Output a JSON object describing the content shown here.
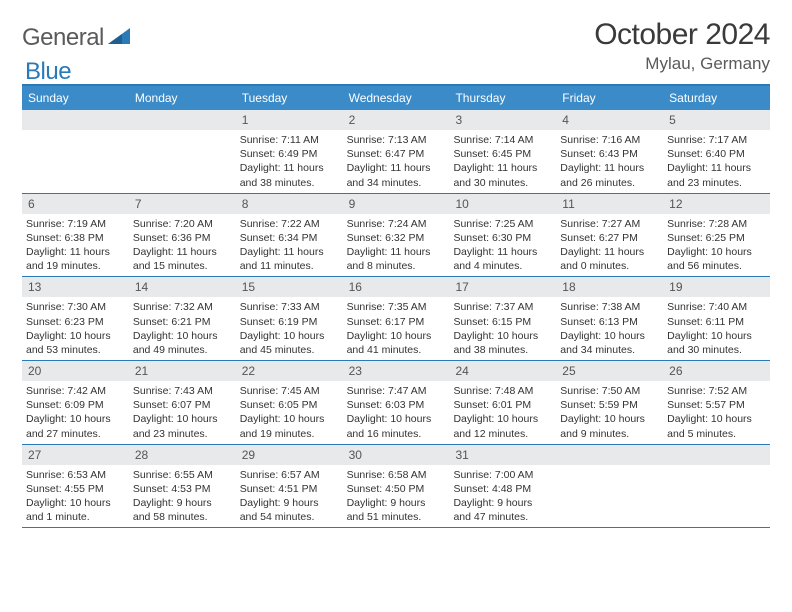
{
  "brand": {
    "part1": "General",
    "part2": "Blue"
  },
  "title": "October 2024",
  "location": "Mylau, Germany",
  "colors": {
    "headerBar": "#3b8bc9",
    "borderBlue": "#2a7ab8",
    "dayNumBg": "#e8e9ea",
    "text": "#333333",
    "logoGray": "#5a5a5a",
    "logoBlue": "#2a7ab8"
  },
  "typography": {
    "title_fontsize": 30,
    "location_fontsize": 17,
    "weekday_fontsize": 12,
    "daynum_fontsize": 12,
    "body_fontsize": 10.5
  },
  "layout": {
    "columns": 7,
    "rows": 5,
    "cell_min_height": 82
  },
  "weekdays": [
    "Sunday",
    "Monday",
    "Tuesday",
    "Wednesday",
    "Thursday",
    "Friday",
    "Saturday"
  ],
  "weeks": [
    [
      {
        "n": "",
        "sunrise": "",
        "sunset": "",
        "daylight": ""
      },
      {
        "n": "",
        "sunrise": "",
        "sunset": "",
        "daylight": ""
      },
      {
        "n": "1",
        "sunrise": "Sunrise: 7:11 AM",
        "sunset": "Sunset: 6:49 PM",
        "daylight": "Daylight: 11 hours and 38 minutes."
      },
      {
        "n": "2",
        "sunrise": "Sunrise: 7:13 AM",
        "sunset": "Sunset: 6:47 PM",
        "daylight": "Daylight: 11 hours and 34 minutes."
      },
      {
        "n": "3",
        "sunrise": "Sunrise: 7:14 AM",
        "sunset": "Sunset: 6:45 PM",
        "daylight": "Daylight: 11 hours and 30 minutes."
      },
      {
        "n": "4",
        "sunrise": "Sunrise: 7:16 AM",
        "sunset": "Sunset: 6:43 PM",
        "daylight": "Daylight: 11 hours and 26 minutes."
      },
      {
        "n": "5",
        "sunrise": "Sunrise: 7:17 AM",
        "sunset": "Sunset: 6:40 PM",
        "daylight": "Daylight: 11 hours and 23 minutes."
      }
    ],
    [
      {
        "n": "6",
        "sunrise": "Sunrise: 7:19 AM",
        "sunset": "Sunset: 6:38 PM",
        "daylight": "Daylight: 11 hours and 19 minutes."
      },
      {
        "n": "7",
        "sunrise": "Sunrise: 7:20 AM",
        "sunset": "Sunset: 6:36 PM",
        "daylight": "Daylight: 11 hours and 15 minutes."
      },
      {
        "n": "8",
        "sunrise": "Sunrise: 7:22 AM",
        "sunset": "Sunset: 6:34 PM",
        "daylight": "Daylight: 11 hours and 11 minutes."
      },
      {
        "n": "9",
        "sunrise": "Sunrise: 7:24 AM",
        "sunset": "Sunset: 6:32 PM",
        "daylight": "Daylight: 11 hours and 8 minutes."
      },
      {
        "n": "10",
        "sunrise": "Sunrise: 7:25 AM",
        "sunset": "Sunset: 6:30 PM",
        "daylight": "Daylight: 11 hours and 4 minutes."
      },
      {
        "n": "11",
        "sunrise": "Sunrise: 7:27 AM",
        "sunset": "Sunset: 6:27 PM",
        "daylight": "Daylight: 11 hours and 0 minutes."
      },
      {
        "n": "12",
        "sunrise": "Sunrise: 7:28 AM",
        "sunset": "Sunset: 6:25 PM",
        "daylight": "Daylight: 10 hours and 56 minutes."
      }
    ],
    [
      {
        "n": "13",
        "sunrise": "Sunrise: 7:30 AM",
        "sunset": "Sunset: 6:23 PM",
        "daylight": "Daylight: 10 hours and 53 minutes."
      },
      {
        "n": "14",
        "sunrise": "Sunrise: 7:32 AM",
        "sunset": "Sunset: 6:21 PM",
        "daylight": "Daylight: 10 hours and 49 minutes."
      },
      {
        "n": "15",
        "sunrise": "Sunrise: 7:33 AM",
        "sunset": "Sunset: 6:19 PM",
        "daylight": "Daylight: 10 hours and 45 minutes."
      },
      {
        "n": "16",
        "sunrise": "Sunrise: 7:35 AM",
        "sunset": "Sunset: 6:17 PM",
        "daylight": "Daylight: 10 hours and 41 minutes."
      },
      {
        "n": "17",
        "sunrise": "Sunrise: 7:37 AM",
        "sunset": "Sunset: 6:15 PM",
        "daylight": "Daylight: 10 hours and 38 minutes."
      },
      {
        "n": "18",
        "sunrise": "Sunrise: 7:38 AM",
        "sunset": "Sunset: 6:13 PM",
        "daylight": "Daylight: 10 hours and 34 minutes."
      },
      {
        "n": "19",
        "sunrise": "Sunrise: 7:40 AM",
        "sunset": "Sunset: 6:11 PM",
        "daylight": "Daylight: 10 hours and 30 minutes."
      }
    ],
    [
      {
        "n": "20",
        "sunrise": "Sunrise: 7:42 AM",
        "sunset": "Sunset: 6:09 PM",
        "daylight": "Daylight: 10 hours and 27 minutes."
      },
      {
        "n": "21",
        "sunrise": "Sunrise: 7:43 AM",
        "sunset": "Sunset: 6:07 PM",
        "daylight": "Daylight: 10 hours and 23 minutes."
      },
      {
        "n": "22",
        "sunrise": "Sunrise: 7:45 AM",
        "sunset": "Sunset: 6:05 PM",
        "daylight": "Daylight: 10 hours and 19 minutes."
      },
      {
        "n": "23",
        "sunrise": "Sunrise: 7:47 AM",
        "sunset": "Sunset: 6:03 PM",
        "daylight": "Daylight: 10 hours and 16 minutes."
      },
      {
        "n": "24",
        "sunrise": "Sunrise: 7:48 AM",
        "sunset": "Sunset: 6:01 PM",
        "daylight": "Daylight: 10 hours and 12 minutes."
      },
      {
        "n": "25",
        "sunrise": "Sunrise: 7:50 AM",
        "sunset": "Sunset: 5:59 PM",
        "daylight": "Daylight: 10 hours and 9 minutes."
      },
      {
        "n": "26",
        "sunrise": "Sunrise: 7:52 AM",
        "sunset": "Sunset: 5:57 PM",
        "daylight": "Daylight: 10 hours and 5 minutes."
      }
    ],
    [
      {
        "n": "27",
        "sunrise": "Sunrise: 6:53 AM",
        "sunset": "Sunset: 4:55 PM",
        "daylight": "Daylight: 10 hours and 1 minute."
      },
      {
        "n": "28",
        "sunrise": "Sunrise: 6:55 AM",
        "sunset": "Sunset: 4:53 PM",
        "daylight": "Daylight: 9 hours and 58 minutes."
      },
      {
        "n": "29",
        "sunrise": "Sunrise: 6:57 AM",
        "sunset": "Sunset: 4:51 PM",
        "daylight": "Daylight: 9 hours and 54 minutes."
      },
      {
        "n": "30",
        "sunrise": "Sunrise: 6:58 AM",
        "sunset": "Sunset: 4:50 PM",
        "daylight": "Daylight: 9 hours and 51 minutes."
      },
      {
        "n": "31",
        "sunrise": "Sunrise: 7:00 AM",
        "sunset": "Sunset: 4:48 PM",
        "daylight": "Daylight: 9 hours and 47 minutes."
      },
      {
        "n": "",
        "sunrise": "",
        "sunset": "",
        "daylight": ""
      },
      {
        "n": "",
        "sunrise": "",
        "sunset": "",
        "daylight": ""
      }
    ]
  ]
}
